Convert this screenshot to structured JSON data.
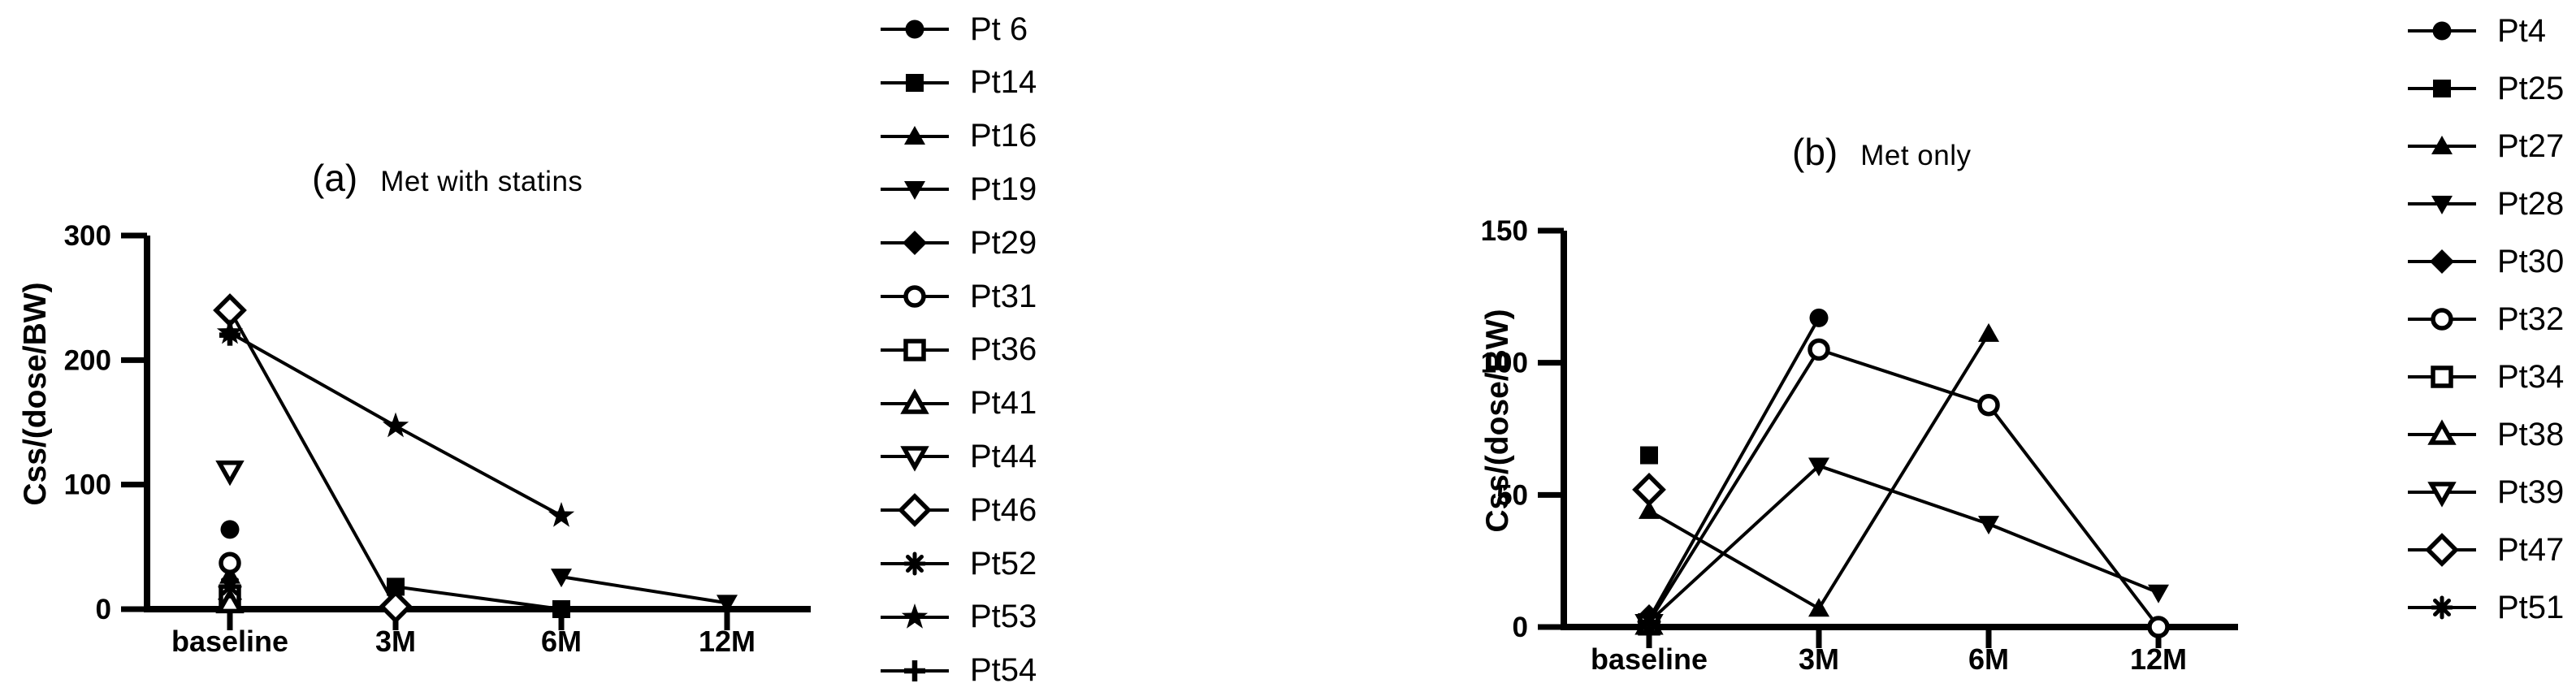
{
  "figure": {
    "background": "#ffffff",
    "ink": "#000000"
  },
  "chart_data": [
    {
      "type": "line",
      "panel_label": "(a)",
      "title": "Met with statins",
      "xlabel": "",
      "ylabel": "Css/(dose/BW)",
      "categories": [
        "baseline",
        "3M",
        "6M",
        "12M"
      ],
      "yticks": [
        0,
        100,
        200,
        300
      ],
      "ylim": [
        0,
        300
      ],
      "grid": false,
      "legend_position": "right",
      "series": [
        {
          "name": "Pt 6",
          "marker": "circle-filled",
          "values": [
            64,
            null,
            null,
            null
          ]
        },
        {
          "name": "Pt14",
          "marker": "square-filled",
          "values": [
            null,
            18,
            0,
            null
          ]
        },
        {
          "name": "Pt16",
          "marker": "triangle-up-filled",
          "values": [
            27,
            null,
            null,
            null
          ]
        },
        {
          "name": "Pt19",
          "marker": "triangle-down-filled",
          "values": [
            null,
            null,
            26,
            5
          ]
        },
        {
          "name": "Pt29",
          "marker": "diamond-filled",
          "values": [
            8,
            null,
            null,
            null
          ]
        },
        {
          "name": "Pt31",
          "marker": "circle-open",
          "values": [
            37,
            null,
            null,
            null
          ]
        },
        {
          "name": "Pt36",
          "marker": "square-open",
          "values": [
            11,
            null,
            null,
            null
          ]
        },
        {
          "name": "Pt41",
          "marker": "triangle-up-open",
          "values": [
            5,
            null,
            null,
            null
          ]
        },
        {
          "name": "Pt44",
          "marker": "triangle-down-open",
          "values": [
            111,
            null,
            null,
            null
          ]
        },
        {
          "name": "Pt46",
          "marker": "diamond-open",
          "values": [
            240,
            2,
            null,
            null
          ]
        },
        {
          "name": "Pt52",
          "marker": "asterisk",
          "values": [
            18,
            null,
            null,
            null
          ]
        },
        {
          "name": "Pt53",
          "marker": "star-filled",
          "values": [
            222,
            147,
            75,
            null
          ]
        },
        {
          "name": "Pt54",
          "marker": "plus",
          "values": [
            220,
            null,
            null,
            null
          ]
        }
      ]
    },
    {
      "type": "line",
      "panel_label": "(b)",
      "title": "Met only",
      "xlabel": "",
      "ylabel": "Css/(dose/BW)",
      "categories": [
        "baseline",
        "3M",
        "6M",
        "12M"
      ],
      "yticks": [
        0,
        50,
        100,
        150
      ],
      "ylim": [
        0,
        150
      ],
      "grid": false,
      "legend_position": "right",
      "series": [
        {
          "name": "Pt4",
          "marker": "circle-filled",
          "values": [
            3,
            117,
            null,
            null
          ]
        },
        {
          "name": "Pt25",
          "marker": "square-filled",
          "values": [
            65,
            null,
            null,
            null
          ]
        },
        {
          "name": "Pt27",
          "marker": "triangle-up-filled",
          "values": [
            44,
            7,
            111,
            null
          ]
        },
        {
          "name": "Pt28",
          "marker": "triangle-down-filled",
          "values": [
            2,
            61,
            39,
            13
          ]
        },
        {
          "name": "Pt30",
          "marker": "diamond-filled",
          "values": [
            4,
            null,
            null,
            null
          ]
        },
        {
          "name": "Pt32",
          "marker": "circle-open",
          "values": [
            2,
            105,
            84,
            0
          ]
        },
        {
          "name": "Pt34",
          "marker": "square-open",
          "values": [
            1,
            null,
            null,
            null
          ]
        },
        {
          "name": "Pt38",
          "marker": "triangle-up-open",
          "values": [
            1,
            null,
            null,
            null
          ]
        },
        {
          "name": "Pt39",
          "marker": "triangle-down-open",
          "values": [
            1,
            null,
            null,
            null
          ]
        },
        {
          "name": "Pt47",
          "marker": "diamond-open",
          "values": [
            52,
            null,
            null,
            null
          ]
        },
        {
          "name": "Pt51",
          "marker": "asterisk",
          "values": [
            2,
            null,
            null,
            null
          ]
        }
      ]
    }
  ]
}
